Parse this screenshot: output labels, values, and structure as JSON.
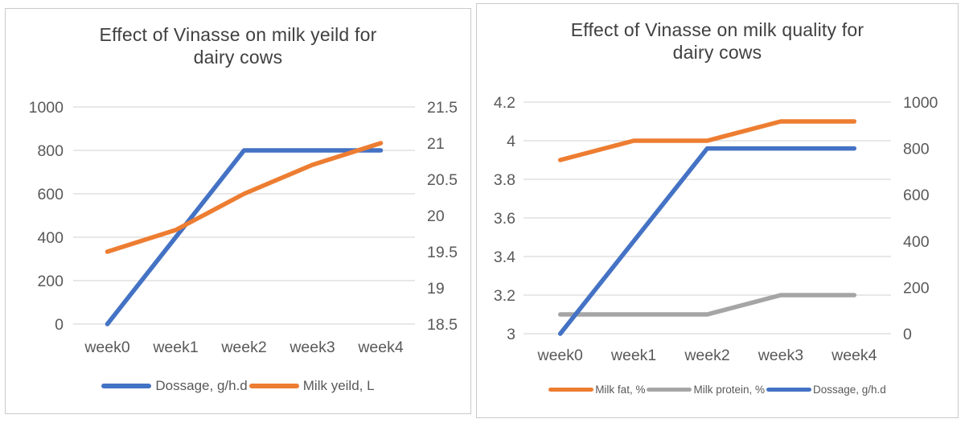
{
  "figure": {
    "background": "#ffffff",
    "panel_border_color": "#c9c9c9"
  },
  "chart_data": [
    {
      "type": "line",
      "title": "Effect of Vinasse on milk yeild for dairy cows",
      "title_lines": [
        "Effect of Vinasse on milk yeild for",
        "dairy cows"
      ],
      "categories": [
        "week0",
        "week1",
        "week2",
        "week3",
        "week4"
      ],
      "series": [
        {
          "name": "Dossage, g/h.d",
          "axis": "left",
          "color": "#4472C4",
          "values": [
            0,
            400,
            800,
            800,
            800
          ]
        },
        {
          "name": "Milk yeild, L",
          "axis": "right",
          "color": "#ED7D31",
          "values": [
            19.5,
            19.8,
            20.3,
            20.7,
            21
          ]
        }
      ],
      "axes": {
        "left": {
          "min": 0,
          "max": 1000,
          "tick_labels": [
            "1000",
            "800",
            "600",
            "400",
            "200",
            "0"
          ]
        },
        "right": {
          "min": 18.5,
          "max": 21.5,
          "tick_labels": [
            "21.5",
            "21",
            "20.5",
            "20",
            "19.5",
            "19",
            "18.5"
          ]
        }
      },
      "legend_position": "bottom",
      "grid_on": true,
      "grid_color": "#d9d9d9",
      "axis_text_color": "#595959",
      "title_color": "#404040"
    },
    {
      "type": "line",
      "title": "Effect of Vinasse on milk quality for dairy cows",
      "title_lines": [
        "Effect of Vinasse on milk quality for",
        "dairy cows"
      ],
      "categories": [
        "week0",
        "week1",
        "week2",
        "week3",
        "week4"
      ],
      "series": [
        {
          "name": "Milk fat, %",
          "axis": "left",
          "color": "#ED7D31",
          "values": [
            3.9,
            4,
            4,
            4.1,
            4.1
          ]
        },
        {
          "name": "Milk protein, %",
          "axis": "left",
          "color": "#A5A5A5",
          "values": [
            3.1,
            3.1,
            3.1,
            3.2,
            3.2
          ]
        },
        {
          "name": "Dossage, g/h.d",
          "axis": "right",
          "color": "#4472C4",
          "values": [
            0,
            400,
            800,
            800,
            800
          ]
        }
      ],
      "axes": {
        "left": {
          "min": 3,
          "max": 4.2,
          "tick_labels": [
            "4.2",
            "4",
            "3.8",
            "3.6",
            "3.4",
            "3.2",
            "3"
          ]
        },
        "right": {
          "min": 0,
          "max": 1000,
          "tick_labels": [
            "1000",
            "800",
            "600",
            "400",
            "200",
            "0"
          ]
        }
      },
      "legend_position": "bottom",
      "grid_on": true,
      "grid_color": "#d9d9d9",
      "axis_text_color": "#595959",
      "title_color": "#404040"
    }
  ]
}
